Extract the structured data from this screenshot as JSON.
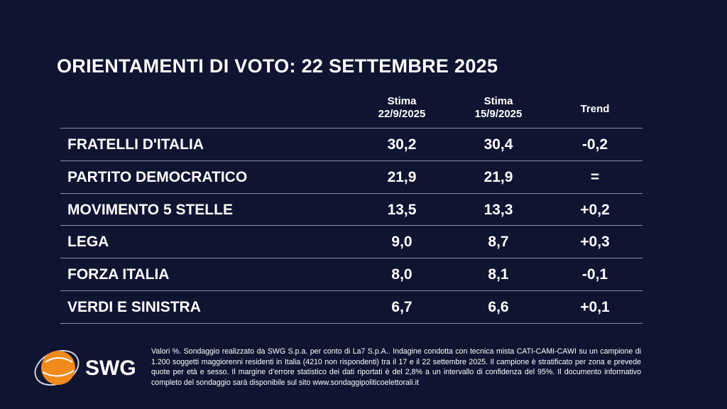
{
  "header": {
    "title": "ORIENTAMENTI DI VOTO: 22 SETTEMBRE 2025"
  },
  "table": {
    "columns": [
      {
        "title": "Stima",
        "date": "22/9/2025"
      },
      {
        "title": "Stima",
        "date": "15/9/2025"
      },
      {
        "title": "Trend"
      }
    ],
    "rows": [
      [
        "FRATELLI D'ITALIA",
        "30,2",
        "30,4",
        "-0,2"
      ],
      [
        "PARTITO DEMOCRATICO",
        "21,9",
        "21,9",
        "="
      ],
      [
        "MOVIMENTO 5 STELLE",
        "13,5",
        "13,3",
        "+0,2"
      ],
      [
        "LEGA",
        "9,0",
        "8,7",
        "+0,3"
      ],
      [
        "FORZA ITALIA",
        "8,0",
        "8,1",
        "-0,1"
      ],
      [
        "VERDI E SINISTRA",
        "6,7",
        "6,6",
        "+0,1"
      ]
    ]
  },
  "footer": {
    "logo": "SWG",
    "note": "Valori %. Sondaggio realizzato da SWG S.p.a. per conto di La7 S.p.A.. Indagine condotta con tecnica mista CATI-CAMI-CAWI su un campione di 1.200 soggetti maggiorenni residenti in Italia (4210 non rispondenti) tra il 17 e il 22 settembre 2025. Il campione è stratificato per zona e prevede quote per età e sesso. Il margine d’errore statistico dei dati riportati è del 2,8% a un intervallo di confidenza del 95%. Il documento informativo completo del sondaggio sarà disponibile sul sito www.sondaggipoliticoelettorali.it"
  }
}
